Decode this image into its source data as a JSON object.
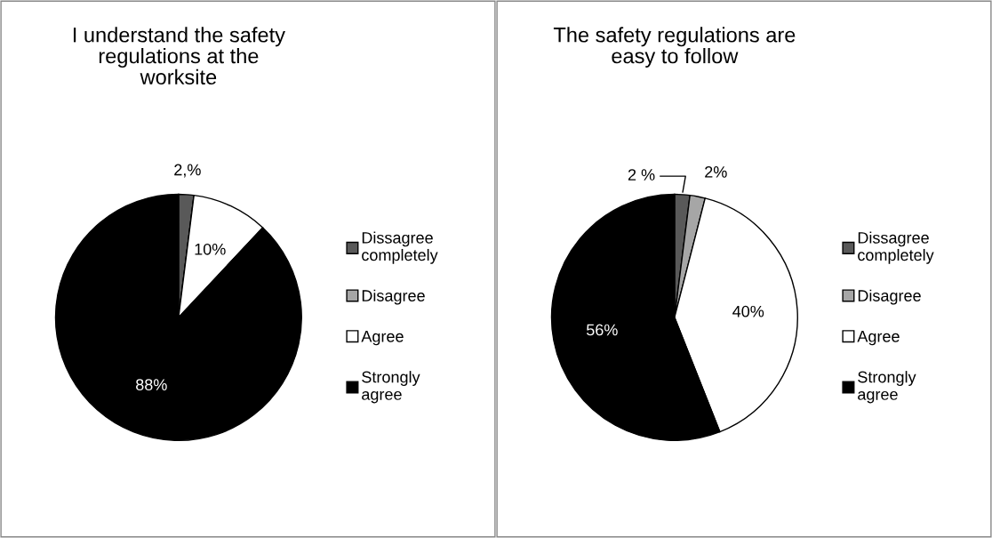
{
  "chart_data": [
    {
      "type": "pie",
      "title": "I understand the safety regulations at the worksite",
      "categories": [
        "Dissagree completely",
        "Disagree",
        "Agree",
        "Strongly agree"
      ],
      "values": [
        2,
        0,
        10,
        88
      ],
      "value_labels": [
        "2,%",
        null,
        "10%",
        "88%"
      ],
      "colors": [
        "#595959",
        "#a6a6a6",
        "#ffffff",
        "#000000"
      ],
      "legend": "right"
    },
    {
      "type": "pie",
      "title": "The safety regulations are easy to follow",
      "categories": [
        "Dissagree completely",
        "Disagree",
        "Agree",
        "Strongly agree"
      ],
      "values": [
        2,
        2,
        40,
        56
      ],
      "value_labels": [
        "2 %",
        "2%",
        "40%",
        "56%"
      ],
      "colors": [
        "#595959",
        "#a6a6a6",
        "#ffffff",
        "#000000"
      ],
      "legend": "right"
    }
  ]
}
